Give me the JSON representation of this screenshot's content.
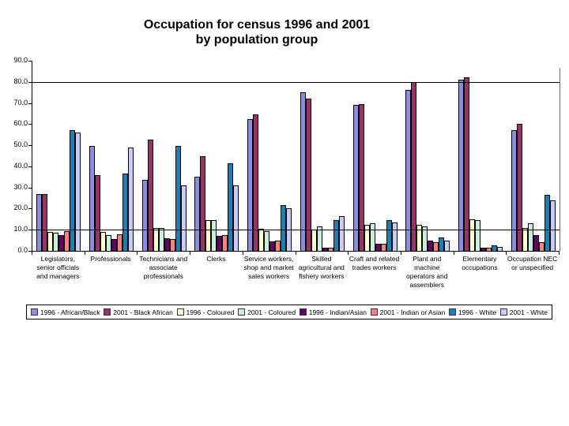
{
  "title": {
    "line1": "Occupation for census 1996 and 2001",
    "line2": "by population group"
  },
  "chart_data": {
    "type": "bar",
    "title": "Occupation for census 1996 and 2001 by population group",
    "categories": [
      "Legislators, senior officials and managers",
      "Professionals",
      "Technicians and associate professionals",
      "Clerks",
      "Service workers, shop and market sales workers",
      "Skilled agricultural and fishery workers",
      "Craft and related trades workers",
      "Plant and machine operators and assemblers",
      "Elementary occupations",
      "Occupation NEC or unspecified"
    ],
    "series": [
      {
        "name": "1996 - African/Black",
        "color": "#8d8de0",
        "values": [
          27,
          49.5,
          33.5,
          35,
          62.5,
          75,
          69,
          76,
          81,
          57
        ]
      },
      {
        "name": "2001 - Black African",
        "color": "#993366",
        "values": [
          27,
          36,
          52.5,
          45,
          64.5,
          72,
          69.5,
          80,
          82,
          60
        ]
      },
      {
        "name": "1996 - Coloured",
        "color": "#ffffcc",
        "values": [
          9,
          9,
          11,
          14.5,
          10.5,
          10,
          12.5,
          12.5,
          15,
          11
        ]
      },
      {
        "name": "2001 - Coloured",
        "color": "#c9eeda",
        "values": [
          8.5,
          7.5,
          11,
          14.5,
          9.5,
          11.5,
          13,
          11.5,
          14.5,
          13
        ]
      },
      {
        "name": "1996 - Indian/Asian",
        "color": "#660066",
        "values": [
          7.5,
          5.5,
          6,
          7,
          4.5,
          1.5,
          3.5,
          5,
          1.5,
          7.5
        ]
      },
      {
        "name": "2001 - Indian or Asian",
        "color": "#ff8080",
        "values": [
          9.5,
          8,
          5.5,
          7.5,
          5,
          1.5,
          3.5,
          4,
          1.5,
          4
        ]
      },
      {
        "name": "1996 - White",
        "color": "#1d7eb2",
        "values": [
          57,
          36.5,
          49.5,
          41.5,
          21.5,
          14.5,
          14.5,
          6.5,
          2.5,
          26.5
        ]
      },
      {
        "name": "2001 - White",
        "color": "#c9ccf5",
        "values": [
          56,
          49,
          31,
          31,
          20,
          16.5,
          13.5,
          5,
          2,
          24
        ]
      }
    ],
    "ylim": [
      0,
      90
    ],
    "ytick_step": 10,
    "ytick_labels": [
      "0.0",
      "10.0",
      "20.0",
      "30.0",
      "40.0",
      "50.0",
      "60.0",
      "70.0",
      "80.0",
      "90.0"
    ],
    "gridlines_at": [
      10,
      80
    ],
    "grid": "partial",
    "legend_position": "bottom",
    "xlabel": "",
    "ylabel": ""
  }
}
